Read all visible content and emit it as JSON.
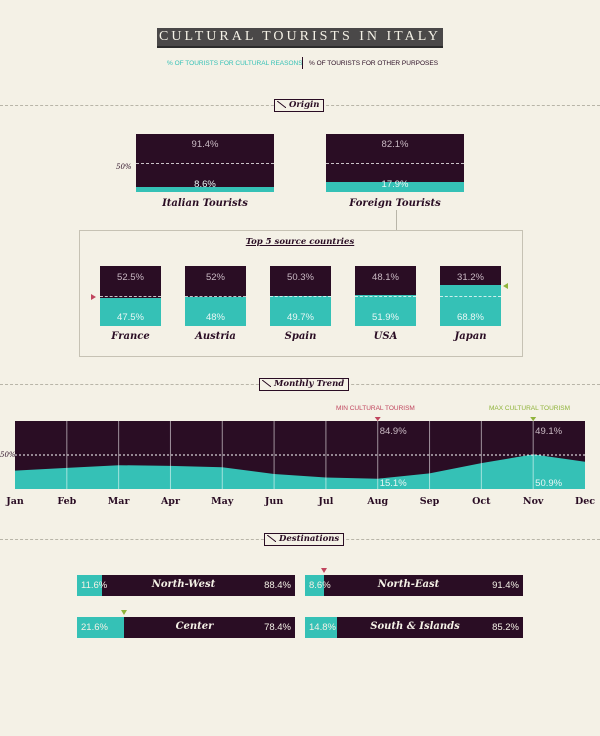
{
  "title": "CULTURAL TOURISTS IN ITALY",
  "legend": {
    "cultural": "% OF TOURISTS FOR CULTURAL REASONS",
    "other": "% OF TOURISTS FOR OTHER PURPOSES"
  },
  "colors": {
    "cultural": "#35c1b6",
    "other": "#2a0d24",
    "background": "#f4f1e6",
    "min_marker": "#c0455e",
    "max_marker": "#8fb33a"
  },
  "reference_label": "50%",
  "sections": {
    "origin": "Origin",
    "monthly": "Monthly Trend",
    "destinations": "Destinations"
  },
  "top5_title": "Top 5 source countries",
  "trend_labels": {
    "min": "MIN CULTURAL TOURISM",
    "max": "MAX CULTURAL TOURISM"
  },
  "chart_data": [
    {
      "type": "bar",
      "stacked": true,
      "group": "origin",
      "categories": [
        "Italian Tourists",
        "Foreign Tourists"
      ],
      "series": [
        {
          "name": "% OF TOURISTS FOR CULTURAL REASONS",
          "values": [
            8.6,
            17.9
          ],
          "labels": [
            "8.6%",
            "17.9%"
          ]
        },
        {
          "name": "% OF TOURISTS FOR OTHER PURPOSES",
          "values": [
            91.4,
            82.1
          ],
          "labels": [
            "91.4%",
            "82.1%"
          ]
        }
      ]
    },
    {
      "type": "bar",
      "stacked": true,
      "group": "top5",
      "title": "Top 5 source countries",
      "categories": [
        "France",
        "Austria",
        "Spain",
        "USA",
        "Japan"
      ],
      "series": [
        {
          "name": "% OF TOURISTS FOR CULTURAL REASONS",
          "values": [
            47.5,
            48,
            49.7,
            51.9,
            68.8
          ],
          "labels": [
            "47.5%",
            "48%",
            "49.7%",
            "51.9%",
            "68.8%"
          ]
        },
        {
          "name": "% OF TOURISTS FOR OTHER PURPOSES",
          "values": [
            52.5,
            52,
            50.3,
            48.1,
            31.2
          ],
          "labels": [
            "52.5%",
            "52%",
            "50.3%",
            "48.1%",
            "31.2%"
          ]
        }
      ]
    },
    {
      "type": "area",
      "group": "monthly",
      "x": [
        "Jan",
        "Feb",
        "Mar",
        "Apr",
        "May",
        "Jun",
        "Jul",
        "Aug",
        "Sep",
        "Oct",
        "Nov",
        "Dec"
      ],
      "series": [
        {
          "name": "% OF TOURISTS FOR CULTURAL REASONS",
          "values": [
            27,
            31,
            35,
            34,
            32,
            22,
            17,
            15.1,
            23,
            38,
            50.9,
            40
          ]
        }
      ],
      "ylim": [
        0,
        100
      ],
      "annotations": [
        {
          "month": "Aug",
          "kind": "min",
          "label": "MIN CULTURAL TOURISM",
          "top": "84.9%",
          "bottom": "15.1%"
        },
        {
          "month": "Nov",
          "kind": "max",
          "label": "MAX CULTURAL TOURISM",
          "top": "49.1%",
          "bottom": "50.9%"
        }
      ]
    },
    {
      "type": "bar",
      "orientation": "horizontal",
      "stacked": true,
      "group": "destinations",
      "categories": [
        "North-West",
        "North-East",
        "Center",
        "South & Islands"
      ],
      "series": [
        {
          "name": "% OF TOURISTS FOR CULTURAL REASONS",
          "values": [
            11.6,
            8.6,
            21.6,
            14.8
          ],
          "labels": [
            "11.6%",
            "8.6%",
            "21.6%",
            "14.8%"
          ]
        },
        {
          "name": "% OF TOURISTS FOR OTHER PURPOSES",
          "values": [
            88.4,
            91.4,
            78.4,
            85.2
          ],
          "labels": [
            "88.4%",
            "91.4%",
            "78.4%",
            "85.2%"
          ]
        }
      ]
    }
  ]
}
